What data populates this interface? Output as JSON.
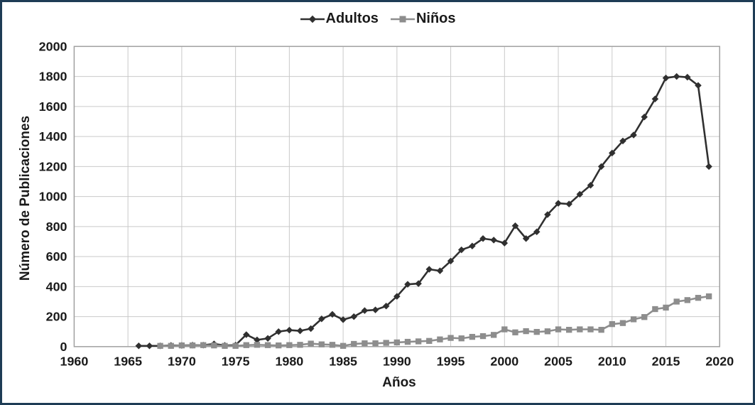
{
  "figure": {
    "background": "#ffffff",
    "border_color": "#1e3c55",
    "text_color": "#1a1a1a"
  },
  "chart_data": {
    "type": "line",
    "title": "",
    "xlabel": "Años",
    "ylabel": "Número de Publicaciones",
    "xlim": [
      1960,
      2020
    ],
    "ylim": [
      0,
      2000
    ],
    "xticks": [
      1960,
      1965,
      1970,
      1975,
      1980,
      1985,
      1990,
      1995,
      2000,
      2005,
      2010,
      2015,
      2020
    ],
    "yticks": [
      0,
      200,
      400,
      600,
      800,
      1000,
      1200,
      1400,
      1600,
      1800,
      2000
    ],
    "grid": true,
    "grid_color": "#c9c9c9",
    "axis_color": "#a0a0a0",
    "legend_position": "top-center",
    "series": [
      {
        "name": "Adultos",
        "key": "adultos",
        "color": "#303030",
        "marker": "diamond",
        "x": [
          1966,
          1967,
          1968,
          1969,
          1970,
          1971,
          1972,
          1973,
          1974,
          1975,
          1976,
          1977,
          1978,
          1979,
          1980,
          1981,
          1982,
          1983,
          1984,
          1985,
          1986,
          1987,
          1988,
          1989,
          1990,
          1991,
          1992,
          1993,
          1994,
          1995,
          1996,
          1997,
          1998,
          1999,
          2000,
          2001,
          2002,
          2003,
          2004,
          2005,
          2006,
          2007,
          2008,
          2009,
          2010,
          2011,
          2012,
          2013,
          2014,
          2015,
          2016,
          2017,
          2018,
          2019
        ],
        "y": [
          5,
          5,
          5,
          8,
          8,
          10,
          10,
          18,
          8,
          10,
          80,
          45,
          55,
          100,
          110,
          105,
          120,
          185,
          215,
          180,
          200,
          240,
          245,
          270,
          335,
          415,
          420,
          515,
          505,
          570,
          645,
          670,
          720,
          710,
          690,
          805,
          720,
          765,
          880,
          955,
          950,
          1015,
          1075,
          1200,
          1290,
          1370,
          1410,
          1530,
          1650,
          1790,
          1800,
          1795,
          1740,
          1200
        ]
      },
      {
        "name": "Niños",
        "key": "ninos",
        "color": "#8d8d8d",
        "marker": "square",
        "x": [
          1968,
          1969,
          1970,
          1971,
          1972,
          1973,
          1974,
          1975,
          1976,
          1977,
          1978,
          1979,
          1980,
          1981,
          1982,
          1983,
          1984,
          1985,
          1986,
          1987,
          1988,
          1989,
          1990,
          1991,
          1992,
          1993,
          1994,
          1995,
          1996,
          1997,
          1998,
          1999,
          2000,
          2001,
          2002,
          2003,
          2004,
          2005,
          2006,
          2007,
          2008,
          2009,
          2010,
          2011,
          2012,
          2013,
          2014,
          2015,
          2016,
          2017,
          2018,
          2019
        ],
        "y": [
          5,
          5,
          8,
          8,
          10,
          8,
          5,
          5,
          10,
          12,
          10,
          8,
          10,
          12,
          20,
          15,
          12,
          5,
          18,
          22,
          22,
          25,
          28,
          32,
          35,
          38,
          48,
          58,
          55,
          65,
          70,
          78,
          115,
          95,
          103,
          98,
          102,
          115,
          112,
          115,
          115,
          112,
          150,
          157,
          182,
          197,
          250,
          260,
          300,
          310,
          325,
          335
        ]
      }
    ]
  }
}
